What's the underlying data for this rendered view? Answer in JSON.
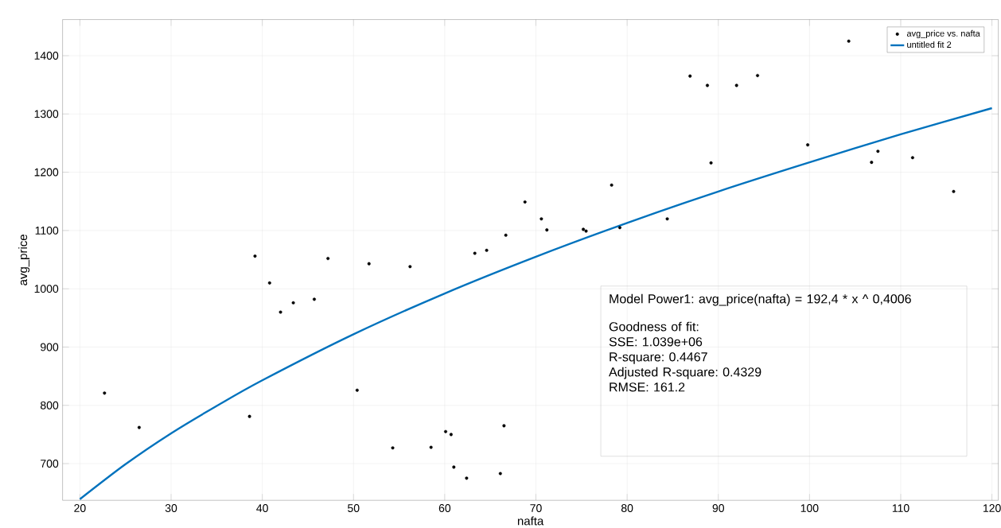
{
  "chart_data": {
    "type": "scatter",
    "xlabel": "nafta",
    "ylabel": "avg_price",
    "xlim": [
      18.1,
      120.7
    ],
    "ylim": [
      637,
      1462
    ],
    "xticks": [
      20,
      30,
      40,
      50,
      60,
      70,
      80,
      90,
      100,
      110,
      120
    ],
    "yticks": [
      700,
      800,
      900,
      1000,
      1100,
      1200,
      1300,
      1400
    ],
    "grid": true,
    "legend": "top right",
    "series": [
      {
        "name": "avg_price vs. nafta",
        "marker": "circle",
        "color": "#000000",
        "x": [
          22.7,
          26.5,
          38.6,
          39.2,
          40.8,
          42.0,
          43.4,
          45.7,
          47.2,
          50.4,
          51.7,
          54.3,
          56.2,
          58.5,
          60.1,
          60.7,
          61.0,
          62.4,
          63.3,
          64.6,
          66.1,
          66.5,
          66.7,
          68.8,
          70.6,
          71.2,
          75.2,
          75.5,
          78.3,
          79.2,
          84.4,
          86.9,
          88.8,
          89.2,
          92.0,
          94.3,
          99.8,
          104.3,
          106.8,
          107.5,
          111.3,
          115.8
        ],
        "values": [
          821,
          762,
          781,
          1056,
          1010,
          960,
          976,
          982,
          1052,
          826,
          1043,
          727,
          1038,
          728,
          755,
          750,
          694,
          675,
          1061,
          1066,
          683,
          765,
          1092,
          1149,
          1120,
          1101,
          1102,
          1099,
          1178,
          1105,
          1120,
          1365,
          1349,
          1216,
          1349,
          1366,
          1247,
          1425,
          1217,
          1236,
          1225,
          1167
        ]
      },
      {
        "name": "untitled fit 2",
        "type": "line",
        "marker": "none",
        "line_style": "solid",
        "color": "#0072bd",
        "x": [
          20,
          25,
          30,
          35,
          40,
          50,
          60,
          70,
          80,
          90,
          100,
          110,
          120
        ],
        "values": [
          639,
          699,
          752,
          799,
          843,
          922,
          992,
          1055,
          1113,
          1167,
          1217,
          1265,
          1310
        ]
      }
    ],
    "annotations": [
      "Model Power1: avg_price(nafta) = 192,4 * x ^ 0,4006",
      "Goodness of fit:",
      "SSE: 1.039e+06",
      "R-square: 0.4467",
      "Adjusted R-square: 0.4329",
      "RMSE: 161.2"
    ]
  }
}
